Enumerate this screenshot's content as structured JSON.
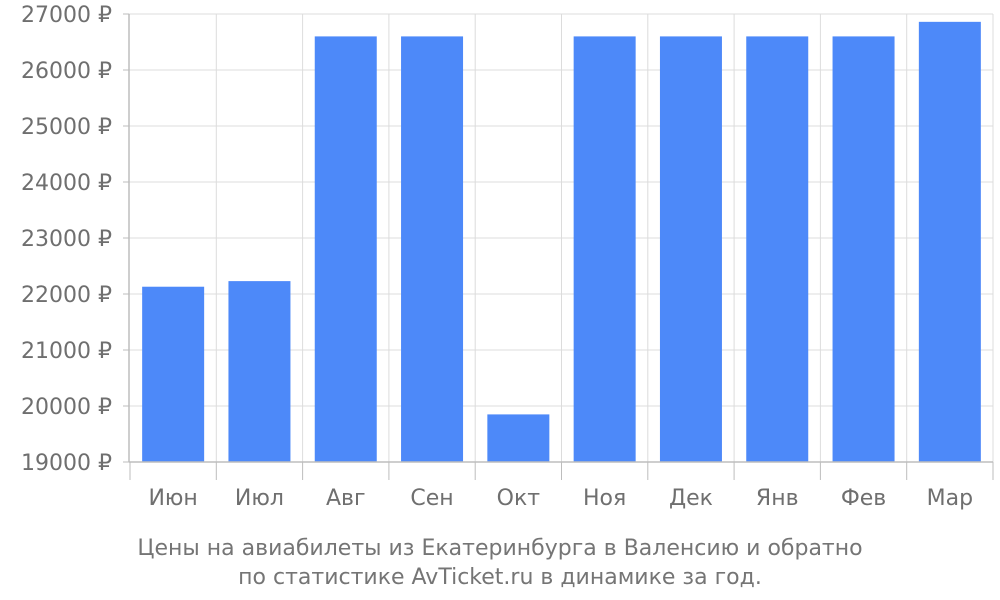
{
  "colors": {
    "bar": "#4d89f9",
    "grid": "#dcdcdc",
    "axis": "#bdbdbd",
    "text": "#6f6f6f"
  },
  "caption": {
    "line1": "Цены на авиабилеты из Екатеринбурга в Валенсию и обратно",
    "line2": "по статистике AvTicket.ru в динамике за год."
  },
  "chart_data": {
    "type": "bar",
    "categories": [
      "Июн",
      "Июл",
      "Авг",
      "Сен",
      "Окт",
      "Ноя",
      "Дек",
      "Янв",
      "Фев",
      "Мар"
    ],
    "values": [
      22130,
      22230,
      26600,
      26600,
      19850,
      26600,
      26600,
      26600,
      26600,
      26860
    ],
    "ylim": [
      19000,
      27000
    ],
    "yticks": [
      19000,
      20000,
      21000,
      22000,
      23000,
      24000,
      25000,
      26000,
      27000
    ],
    "ytick_labels": [
      "19000 ₽",
      "20000 ₽",
      "21000 ₽",
      "22000 ₽",
      "23000 ₽",
      "24000 ₽",
      "25000 ₽",
      "26000 ₽",
      "27000 ₽"
    ],
    "grid": true,
    "legend": "none"
  }
}
